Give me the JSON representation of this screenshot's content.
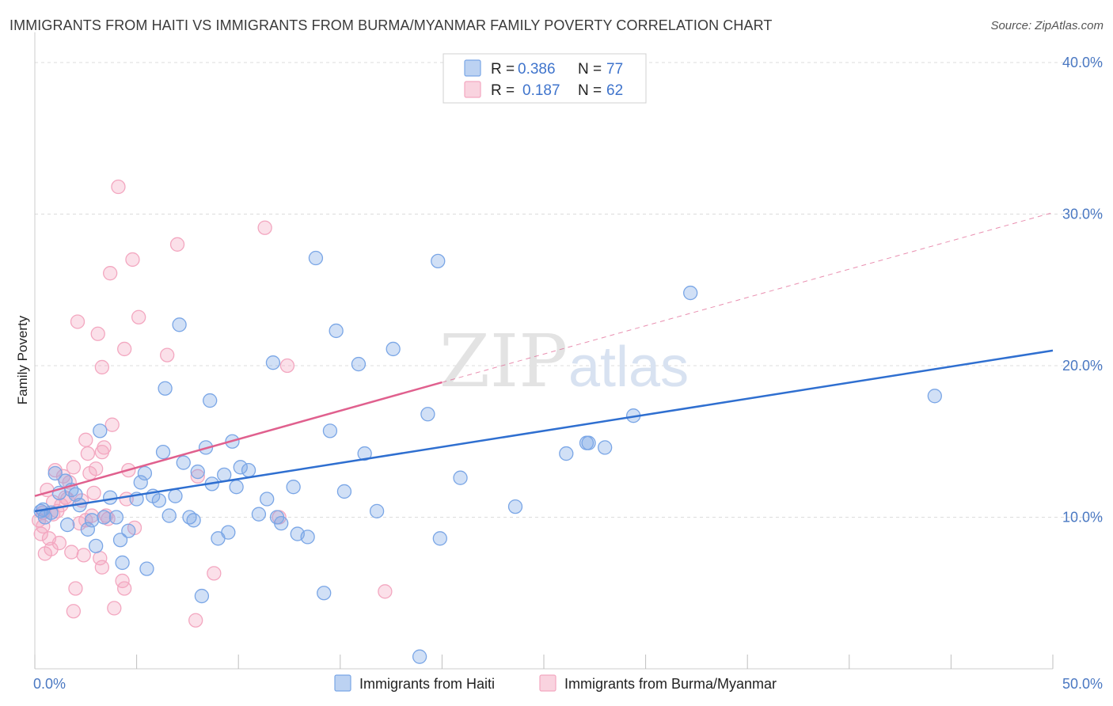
{
  "title": "IMMIGRANTS FROM HAITI VS IMMIGRANTS FROM BURMA/MYANMAR FAMILY POVERTY CORRELATION CHART",
  "source": "Source: ZipAtlas.com",
  "watermark": {
    "zip": "ZIP",
    "atlas": "atlas"
  },
  "colors": {
    "haiti": "#7aa6e6",
    "haiti_line": "#2f6fd0",
    "burma": "#f3a7c0",
    "burma_line": "#e0608e",
    "axis_label": "#4a78c2",
    "grid": "#dcdcdc"
  },
  "legend": {
    "haiti": {
      "r_label": "R =",
      "r_value": "0.386",
      "n_label": "N =",
      "n_value": "77"
    },
    "burma": {
      "r_label": "R =",
      "r_value": "0.187",
      "n_label": "N =",
      "n_value": "62"
    }
  },
  "chart_data": {
    "type": "scatter",
    "title": "IMMIGRANTS FROM HAITI VS IMMIGRANTS FROM BURMA/MYANMAR FAMILY POVERTY CORRELATION CHART",
    "xlabel": "",
    "ylabel": "Family Poverty",
    "xlim": [
      0,
      50
    ],
    "ylim": [
      0,
      42
    ],
    "x_tick_labels": [
      "0.0%",
      "50.0%"
    ],
    "y_ticks": [
      10,
      20,
      30,
      40
    ],
    "y_tick_labels": [
      "10.0%",
      "20.0%",
      "30.0%",
      "40.0%"
    ],
    "grid": true,
    "legend_position": "top-center",
    "series": [
      {
        "name": "Immigrants from Haiti",
        "points": [
          [
            0.3,
            10.4
          ],
          [
            0.5,
            10.0
          ],
          [
            0.8,
            10.3
          ],
          [
            1.0,
            12.9
          ],
          [
            1.2,
            11.6
          ],
          [
            1.5,
            12.4
          ],
          [
            1.6,
            9.5
          ],
          [
            1.8,
            11.8
          ],
          [
            2.0,
            11.5
          ],
          [
            2.2,
            10.8
          ],
          [
            2.6,
            9.2
          ],
          [
            2.8,
            9.8
          ],
          [
            3.0,
            8.1
          ],
          [
            3.2,
            15.7
          ],
          [
            3.4,
            10.0
          ],
          [
            3.7,
            11.3
          ],
          [
            4.0,
            10.0
          ],
          [
            4.2,
            8.5
          ],
          [
            4.3,
            7.0
          ],
          [
            4.6,
            9.1
          ],
          [
            5.0,
            11.2
          ],
          [
            5.2,
            12.3
          ],
          [
            5.4,
            12.9
          ],
          [
            5.5,
            6.6
          ],
          [
            5.8,
            11.4
          ],
          [
            6.1,
            11.1
          ],
          [
            6.3,
            14.3
          ],
          [
            6.4,
            18.5
          ],
          [
            6.6,
            10.1
          ],
          [
            6.9,
            11.4
          ],
          [
            7.1,
            22.7
          ],
          [
            7.3,
            13.6
          ],
          [
            7.6,
            10.0
          ],
          [
            7.8,
            9.8
          ],
          [
            8.0,
            13.0
          ],
          [
            8.2,
            4.8
          ],
          [
            8.4,
            14.6
          ],
          [
            8.6,
            17.7
          ],
          [
            8.7,
            12.2
          ],
          [
            9.0,
            8.6
          ],
          [
            9.3,
            12.8
          ],
          [
            9.5,
            9.0
          ],
          [
            9.7,
            15.0
          ],
          [
            9.9,
            12.0
          ],
          [
            10.1,
            13.3
          ],
          [
            10.5,
            13.1
          ],
          [
            11.0,
            10.2
          ],
          [
            11.4,
            11.2
          ],
          [
            11.7,
            20.2
          ],
          [
            11.9,
            10.0
          ],
          [
            12.1,
            9.6
          ],
          [
            12.7,
            12.0
          ],
          [
            12.9,
            8.9
          ],
          [
            13.4,
            8.7
          ],
          [
            13.8,
            27.1
          ],
          [
            14.2,
            5.0
          ],
          [
            14.5,
            15.7
          ],
          [
            14.8,
            22.3
          ],
          [
            15.2,
            11.7
          ],
          [
            15.9,
            20.1
          ],
          [
            16.2,
            14.2
          ],
          [
            16.8,
            10.4
          ],
          [
            17.6,
            21.1
          ],
          [
            18.9,
            0.8
          ],
          [
            19.3,
            16.8
          ],
          [
            19.8,
            26.9
          ],
          [
            19.9,
            8.6
          ],
          [
            20.9,
            12.6
          ],
          [
            23.6,
            10.7
          ],
          [
            26.1,
            14.2
          ],
          [
            27.1,
            14.9
          ],
          [
            27.2,
            14.9
          ],
          [
            28.0,
            14.6
          ],
          [
            29.4,
            16.7
          ],
          [
            32.2,
            24.8
          ],
          [
            44.2,
            18.0
          ],
          [
            0.4,
            10.5
          ]
        ],
        "trend": {
          "x": [
            0,
            50
          ],
          "y": [
            10.4,
            21.0
          ]
        }
      },
      {
        "name": "Immigrants from Burma/Myanmar",
        "points": [
          [
            0.2,
            9.8
          ],
          [
            0.3,
            8.9
          ],
          [
            0.4,
            9.4
          ],
          [
            0.5,
            7.6
          ],
          [
            0.6,
            11.8
          ],
          [
            0.7,
            8.6
          ],
          [
            0.8,
            7.9
          ],
          [
            0.9,
            11.0
          ],
          [
            1.0,
            13.1
          ],
          [
            1.1,
            10.4
          ],
          [
            1.2,
            8.3
          ],
          [
            1.3,
            10.8
          ],
          [
            1.4,
            12.7
          ],
          [
            1.5,
            11.3
          ],
          [
            1.6,
            11.2
          ],
          [
            1.7,
            12.3
          ],
          [
            1.8,
            7.7
          ],
          [
            1.9,
            13.3
          ],
          [
            2.0,
            5.3
          ],
          [
            2.1,
            22.9
          ],
          [
            2.2,
            9.6
          ],
          [
            2.3,
            11.1
          ],
          [
            2.4,
            7.5
          ],
          [
            2.5,
            15.1
          ],
          [
            2.6,
            14.2
          ],
          [
            2.7,
            12.9
          ],
          [
            2.8,
            10.1
          ],
          [
            2.9,
            11.6
          ],
          [
            3.0,
            13.2
          ],
          [
            3.1,
            22.1
          ],
          [
            3.2,
            7.3
          ],
          [
            3.3,
            19.9
          ],
          [
            3.4,
            14.6
          ],
          [
            3.5,
            10.1
          ],
          [
            3.6,
            9.9
          ],
          [
            3.7,
            26.1
          ],
          [
            3.8,
            16.1
          ],
          [
            3.9,
            4.0
          ],
          [
            4.1,
            31.8
          ],
          [
            4.3,
            5.8
          ],
          [
            4.4,
            21.1
          ],
          [
            4.5,
            11.2
          ],
          [
            4.6,
            13.1
          ],
          [
            4.8,
            27.0
          ],
          [
            4.9,
            9.3
          ],
          [
            5.1,
            23.2
          ],
          [
            6.5,
            20.7
          ],
          [
            7.0,
            28.0
          ],
          [
            7.9,
            3.2
          ],
          [
            8.0,
            12.7
          ],
          [
            8.8,
            6.3
          ],
          [
            11.3,
            29.1
          ],
          [
            12.0,
            10.0
          ],
          [
            12.4,
            20.0
          ],
          [
            17.2,
            5.1
          ],
          [
            0.4,
            10.3
          ],
          [
            1.9,
            3.8
          ],
          [
            3.3,
            6.7
          ],
          [
            4.4,
            5.3
          ],
          [
            0.9,
            10.2
          ],
          [
            2.5,
            9.8
          ],
          [
            3.3,
            14.3
          ]
        ],
        "trend": {
          "x": [
            0,
            20
          ],
          "y": [
            11.4,
            18.9
          ]
        },
        "trend_extension": {
          "x": [
            20,
            50
          ],
          "y": [
            18.9,
            30.1
          ]
        }
      }
    ]
  },
  "bottom_legend": {
    "haiti": "Immigrants from Haiti",
    "burma": "Immigrants from Burma/Myanmar"
  }
}
